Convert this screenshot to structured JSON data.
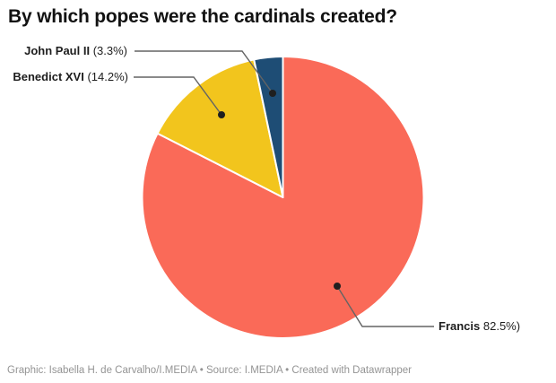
{
  "title": "By which popes were the cardinals created?",
  "footer": "Graphic: Isabella H. de Carvalho/I.MEDIA • Source: I.MEDIA • Created with Datawrapper",
  "colors": {
    "background": "#FFFFFF",
    "title_text": "#121212",
    "label_text": "#1D1D1D",
    "footer_text": "#949494",
    "slice_gap": "#FFFFFF"
  },
  "chart_data": {
    "type": "pie",
    "title": "By which popes were the cardinals created?",
    "unit": "%",
    "slices": [
      {
        "label": "John Paul II",
        "value": 3.3,
        "value_text": "(3.3%)",
        "color": "#1E4D75"
      },
      {
        "label": "Benedict XVI",
        "value": 14.2,
        "value_text": "(14.2%)",
        "color": "#F2C51D"
      },
      {
        "label": "Francis",
        "value": 82.5,
        "value_text": "82.5%)",
        "color": "#FA6A58"
      }
    ],
    "start_angle_deg": 0,
    "direction": "clockwise",
    "clockwise_order": [
      "Francis",
      "Benedict XVI",
      "John Paul II"
    ],
    "legend_position": "callout-labels",
    "grid": "off",
    "connector_color": "#646464",
    "dot_color": "#1F1F1F"
  }
}
